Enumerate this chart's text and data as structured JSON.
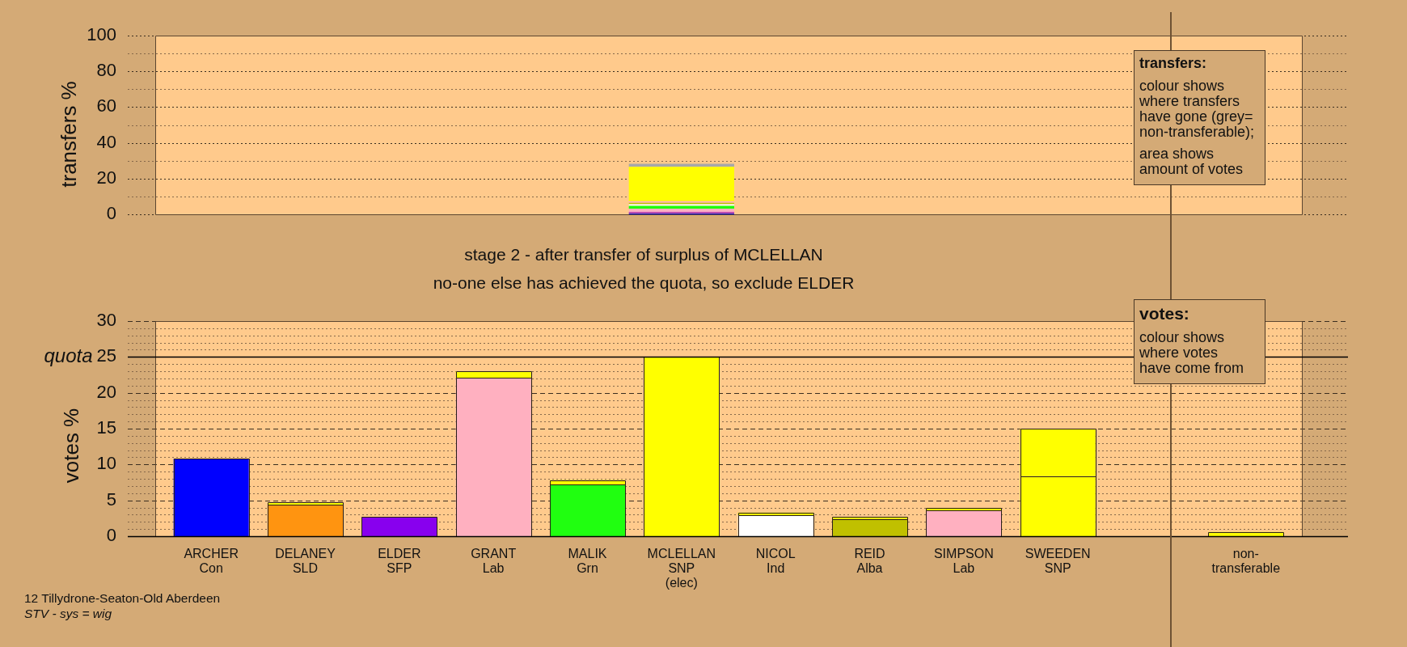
{
  "chart_data": [
    {
      "type": "bar",
      "stacked": true,
      "ylabel": "transfers %",
      "categories": [
        null,
        null,
        null,
        null,
        null,
        null,
        null,
        null,
        null,
        null,
        null,
        null
      ],
      "series": [
        {
          "color": "#0000ff",
          "values": [
            null,
            null,
            null,
            null,
            null,
            0.4,
            null,
            null,
            null,
            null,
            null,
            null
          ]
        },
        {
          "color": "#ff9410",
          "values": [
            null,
            null,
            null,
            null,
            null,
            0.3,
            null,
            null,
            null,
            null,
            null,
            null
          ]
        },
        {
          "color": "#8800ee",
          "values": [
            null,
            null,
            null,
            null,
            null,
            0.5,
            null,
            null,
            null,
            null,
            null,
            null
          ]
        },
        {
          "color": "#ffb0c0",
          "values": [
            null,
            null,
            null,
            null,
            null,
            2.0,
            null,
            null,
            null,
            null,
            null,
            null
          ]
        },
        {
          "color": "#20ff10",
          "values": [
            null,
            null,
            null,
            null,
            null,
            1.5,
            null,
            null,
            null,
            null,
            null,
            null
          ]
        },
        {
          "color": "#ffffff",
          "values": [
            null,
            null,
            null,
            null,
            null,
            0.9,
            null,
            null,
            null,
            null,
            null,
            null
          ]
        },
        {
          "color": "#c0c000",
          "values": [
            null,
            null,
            null,
            null,
            null,
            0.8,
            null,
            null,
            null,
            null,
            null,
            null
          ]
        },
        {
          "color": "#ffb0c0",
          "values": [
            null,
            null,
            null,
            null,
            null,
            0.9,
            null,
            null,
            null,
            null,
            null,
            null
          ]
        },
        {
          "color": "#ffff00",
          "values": [
            null,
            null,
            null,
            null,
            null,
            19.3,
            null,
            null,
            null,
            null,
            null,
            null
          ]
        },
        {
          "color": "#a8a8a8",
          "values": [
            null,
            null,
            null,
            null,
            null,
            1.7,
            null,
            null,
            null,
            null,
            null,
            null
          ]
        }
      ],
      "ylim": [
        0,
        100
      ],
      "yticks": [
        0,
        {
          "value": 10,
          "label": null
        },
        20,
        {
          "value": 30,
          "label": null
        },
        40,
        {
          "value": 50,
          "label": null
        },
        60,
        {
          "value": 70,
          "label": null
        },
        80,
        {
          "value": 90,
          "label": null
        },
        100
      ],
      "grid": "y",
      "tick_labels": "y",
      "annotations": [
        "transfers:",
        "colour shows\nwhere transfers\nhave gone (grey=\nnon-transferable);",
        "area shows\namount of votes"
      ]
    },
    {
      "type": "bar",
      "stacked": true,
      "title": "stage 2 - after transfer of surplus of MCLELLAN",
      "subtitle": "no-one else has achieved the quota, so exclude ELDER",
      "ylabel": "votes %",
      "categories": [
        "ARCHER\nCon",
        "DELANEY\nSLD",
        "ELDER\nSFP",
        "GRANT\nLab",
        "MALIK\nGrn",
        "MCLELLAN\nSNP\n(elec)",
        "NICOL\nInd",
        "REID\nAlba",
        "SIMPSON\nLab",
        "SWEEDEN\nSNP",
        null,
        "non-\ntransferable"
      ],
      "series": [
        {
          "colors": [
            "#0000ff",
            "#ff9410",
            "#8800ee",
            "#ffb0c0",
            "#20ff10",
            "#ffff00",
            "#ffffff",
            "#c0c000",
            "#ffb0c0",
            "#ffff00",
            null,
            null
          ],
          "values": [
            10.8,
            4.4,
            2.7,
            22.1,
            7.2,
            25.0,
            2.9,
            2.4,
            3.6,
            8.4,
            null,
            null
          ]
        },
        {
          "color": "#ffff00",
          "values": [
            null,
            0.3,
            null,
            0.9,
            0.6,
            null,
            0.4,
            0.3,
            0.3,
            6.6,
            null,
            0.6
          ]
        }
      ],
      "ylim": [
        0,
        30
      ],
      "yticks": [
        0,
        {
          "value": 1,
          "label": null
        },
        {
          "value": 2,
          "label": null
        },
        {
          "value": 3,
          "label": null
        },
        {
          "value": 4,
          "label": null
        },
        5,
        {
          "value": 6,
          "label": null
        },
        {
          "value": 7,
          "label": null
        },
        {
          "value": 8,
          "label": null
        },
        {
          "value": 9,
          "label": null
        },
        10,
        {
          "value": 11,
          "label": null
        },
        {
          "value": 12,
          "label": null
        },
        {
          "value": 13,
          "label": null
        },
        {
          "value": 14,
          "label": null
        },
        15,
        {
          "value": 16,
          "label": null
        },
        {
          "value": 17,
          "label": null
        },
        {
          "value": 18,
          "label": null
        },
        {
          "value": 19,
          "label": null
        },
        20,
        {
          "value": 21,
          "label": null
        },
        {
          "value": 22,
          "label": null
        },
        {
          "value": 23,
          "label": null
        },
        {
          "value": 24,
          "label": null
        },
        25,
        {
          "value": 26,
          "label": null
        },
        {
          "value": 27,
          "label": null
        },
        {
          "value": 28,
          "label": null
        },
        {
          "value": 29,
          "label": null
        },
        30
      ],
      "grid": "y",
      "ref_lines": [
        {
          "axis": "y",
          "value": 25,
          "label": "quota",
          "color": "#000000",
          "line_style": "solid"
        }
      ],
      "annotations": [
        "votes:",
        "colour shows\nwhere votes\nhave come from",
        "12 Tillydrone-Seaton-Old Aberdeen",
        "STV - sys = wig"
      ]
    }
  ]
}
